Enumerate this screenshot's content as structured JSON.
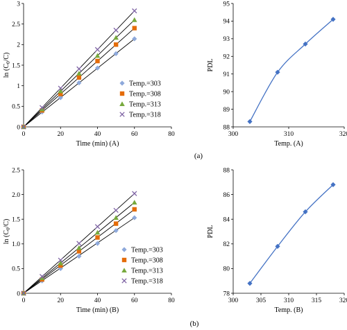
{
  "panel_labels": [
    "(a)",
    "(b)"
  ],
  "colors": {
    "t303": "#8EA9DB",
    "t308": "#E46C0A",
    "t313": "#77A93D",
    "t318": "#7E63A4",
    "pdl": "#4472C4",
    "line": "#000000"
  },
  "chart_data": [
    {
      "id": "a-left",
      "type": "scatter",
      "xlabel": "Time (min) (A)",
      "ylabel": "ln (C0/C)",
      "ylabel_main": "ln (C",
      "ylabel_sub": "0",
      "ylabel_tail": "/C)",
      "xlim": [
        0,
        80
      ],
      "ylim": [
        0,
        3.0
      ],
      "xticks": [
        0,
        20,
        40,
        60,
        80
      ],
      "yticks": [
        0,
        0.5,
        1.0,
        1.5,
        2.0,
        2.5,
        3.0
      ],
      "yticklabels": [
        "0",
        "0.5",
        "1",
        "1.5",
        "2",
        "2.5",
        "3"
      ],
      "x": [
        0,
        10,
        20,
        30,
        40,
        50,
        60
      ],
      "legend_position": "center-right",
      "series": [
        {
          "name": "Temp.=303",
          "marker": "diamond",
          "color": "#8EA9DB",
          "values": [
            0,
            0.36,
            0.71,
            1.07,
            1.43,
            1.78,
            2.14
          ]
        },
        {
          "name": "Temp.=308",
          "marker": "square",
          "color": "#E46C0A",
          "values": [
            0,
            0.4,
            0.8,
            1.2,
            1.6,
            2.0,
            2.4
          ]
        },
        {
          "name": "Temp.=313",
          "marker": "triangle",
          "color": "#77A93D",
          "values": [
            0,
            0.43,
            0.87,
            1.3,
            1.73,
            2.17,
            2.6
          ]
        },
        {
          "name": "Temp.=318",
          "marker": "x",
          "color": "#7E63A4",
          "values": [
            0,
            0.47,
            0.94,
            1.41,
            1.88,
            2.35,
            2.82
          ]
        }
      ]
    },
    {
      "id": "a-right",
      "type": "line",
      "xlabel": "Temp. (A)",
      "ylabel": "PDL",
      "xlim": [
        300,
        320
      ],
      "ylim": [
        88,
        95
      ],
      "xticks": [
        300,
        310,
        320
      ],
      "yticks": [
        88,
        89,
        90,
        91,
        92,
        93,
        94,
        95
      ],
      "series": [
        {
          "name": "",
          "marker": "diamond",
          "color": "#4472C4",
          "x": [
            303,
            308,
            313,
            318
          ],
          "values": [
            88.3,
            91.1,
            92.7,
            94.1
          ]
        }
      ]
    },
    {
      "id": "b-left",
      "type": "scatter",
      "xlabel": "Time (min) (B)",
      "ylabel": "ln (C0/C)",
      "ylabel_main": "ln (C",
      "ylabel_sub": "0",
      "ylabel_tail": "/C)",
      "xlim": [
        0,
        80
      ],
      "ylim": [
        0,
        2.5
      ],
      "xticks": [
        0,
        20,
        40,
        60,
        80
      ],
      "yticks": [
        0,
        0.5,
        1.0,
        1.5,
        2.0,
        2.5
      ],
      "yticklabels": [
        "0",
        "0.5",
        "1.0",
        "1.5",
        "2.0",
        "2.5"
      ],
      "x": [
        0,
        10,
        20,
        30,
        40,
        50,
        60
      ],
      "legend_position": "center-right",
      "series": [
        {
          "name": "Temp.=303",
          "marker": "diamond",
          "color": "#8EA9DB",
          "values": [
            0,
            0.25,
            0.5,
            0.75,
            1.01,
            1.27,
            1.53
          ]
        },
        {
          "name": "Temp.=308",
          "marker": "square",
          "color": "#E46C0A",
          "values": [
            0,
            0.28,
            0.56,
            0.85,
            1.13,
            1.41,
            1.7
          ]
        },
        {
          "name": "Temp.=313",
          "marker": "triangle",
          "color": "#77A93D",
          "values": [
            0,
            0.31,
            0.61,
            0.92,
            1.23,
            1.53,
            1.84
          ]
        },
        {
          "name": "Temp.=318",
          "marker": "x",
          "color": "#7E63A4",
          "values": [
            0,
            0.34,
            0.67,
            1.01,
            1.35,
            1.68,
            2.02
          ]
        }
      ]
    },
    {
      "id": "b-right",
      "type": "line",
      "xlabel": "Temp. (B)",
      "ylabel": "PDL",
      "xlim": [
        300,
        320
      ],
      "ylim": [
        78,
        88
      ],
      "xticks": [
        300,
        305,
        310,
        315,
        320
      ],
      "yticks": [
        78,
        80,
        82,
        84,
        86,
        88
      ],
      "series": [
        {
          "name": "",
          "marker": "diamond",
          "color": "#4472C4",
          "x": [
            303,
            308,
            313,
            318
          ],
          "values": [
            78.8,
            81.8,
            84.6,
            86.8
          ]
        }
      ]
    }
  ]
}
